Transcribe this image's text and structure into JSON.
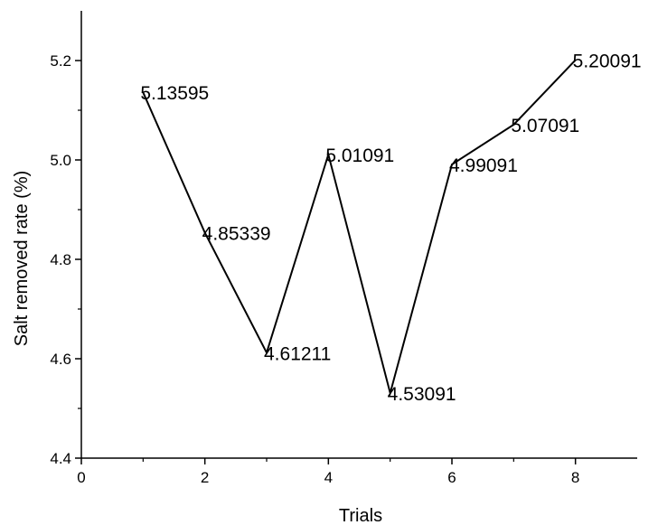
{
  "chart_data": {
    "type": "line",
    "title": "",
    "xlabel": "Trials",
    "ylabel": "Salt removed rate (%)",
    "xlim": [
      0,
      9
    ],
    "ylim": [
      4.4,
      5.3
    ],
    "xticks": [
      0,
      2,
      4,
      6,
      8
    ],
    "xtick_labels": [
      "0",
      "2",
      "4",
      "6",
      "8"
    ],
    "yticks": [
      4.4,
      4.6,
      4.8,
      5.0,
      5.2
    ],
    "ytick_labels": [
      "4.4",
      "4.6",
      "4.8",
      "5.0",
      "5.2"
    ],
    "grid": false,
    "series": [
      {
        "x": [
          1,
          2,
          3,
          4,
          5,
          6,
          7,
          8
        ],
        "y": [
          5.13595,
          4.85339,
          4.61211,
          5.01091,
          4.53091,
          4.99091,
          5.07091,
          5.20091
        ],
        "labels": [
          "5.13595",
          "4.85339",
          "4.61211",
          "5.01091",
          "4.53091",
          "4.99091",
          "5.07091",
          "5.20091"
        ],
        "color": "#000000"
      }
    ]
  }
}
